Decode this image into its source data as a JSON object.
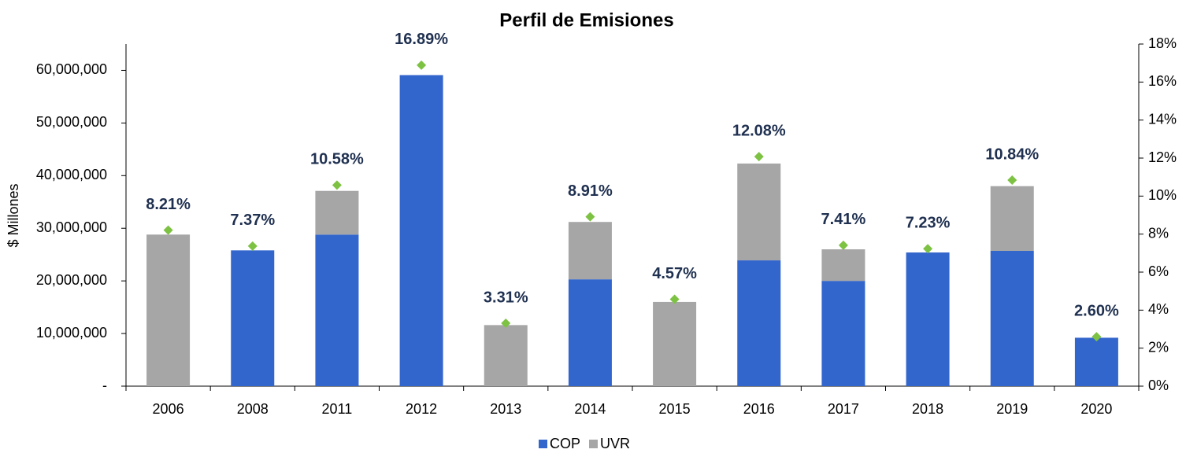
{
  "chart_data": {
    "type": "bar",
    "stacked": true,
    "title": "Perfil de Emisiones",
    "ylabel": "$ Millones",
    "categories": [
      "2006",
      "2008",
      "2011",
      "2012",
      "2013",
      "2014",
      "2015",
      "2016",
      "2017",
      "2018",
      "2019",
      "2020"
    ],
    "series": [
      {
        "name": "COP",
        "color": "#3366cc",
        "values": [
          0,
          25800000,
          28800000,
          59100000,
          0,
          20300000,
          0,
          23900000,
          20000000,
          25400000,
          25700000,
          9200000
        ]
      },
      {
        "name": "UVR",
        "color": "#a6a6a6",
        "values": [
          28800000,
          0,
          8300000,
          0,
          11600000,
          10900000,
          16000000,
          18400000,
          6000000,
          0,
          12300000,
          0
        ]
      },
      {
        "type": "scatter",
        "axis": "y2",
        "color": "#7dc242",
        "values": [
          8.21,
          7.37,
          10.58,
          16.89,
          3.31,
          8.91,
          4.57,
          12.08,
          7.41,
          7.23,
          10.84,
          2.6
        ],
        "value_labels": [
          "8.21%",
          "7.37%",
          "10.58%",
          "16.89%",
          "3.31%",
          "8.91%",
          "4.57%",
          "12.08%",
          "7.41%",
          "7.23%",
          "10.84%",
          "2.60%"
        ]
      }
    ],
    "ylim": [
      0,
      65000000
    ],
    "yticks": [
      {
        "value": 0,
        "label": "-"
      },
      {
        "value": 10000000,
        "label": "10,000,000"
      },
      {
        "value": 20000000,
        "label": "20,000,000"
      },
      {
        "value": 30000000,
        "label": "30,000,000"
      },
      {
        "value": 40000000,
        "label": "40,000,000"
      },
      {
        "value": 50000000,
        "label": "50,000,000"
      },
      {
        "value": 60000000,
        "label": "60,000,000"
      }
    ],
    "y2lim": [
      0,
      18
    ],
    "y2ticks": [
      {
        "value": 0,
        "label": "0%"
      },
      {
        "value": 2,
        "label": "2%"
      },
      {
        "value": 4,
        "label": "4%"
      },
      {
        "value": 6,
        "label": "6%"
      },
      {
        "value": 8,
        "label": "8%"
      },
      {
        "value": 10,
        "label": "10%"
      },
      {
        "value": 12,
        "label": "12%"
      },
      {
        "value": 14,
        "label": "14%"
      },
      {
        "value": 16,
        "label": "16%"
      },
      {
        "value": 18,
        "label": "18%"
      }
    ],
    "legend": "bottom"
  }
}
